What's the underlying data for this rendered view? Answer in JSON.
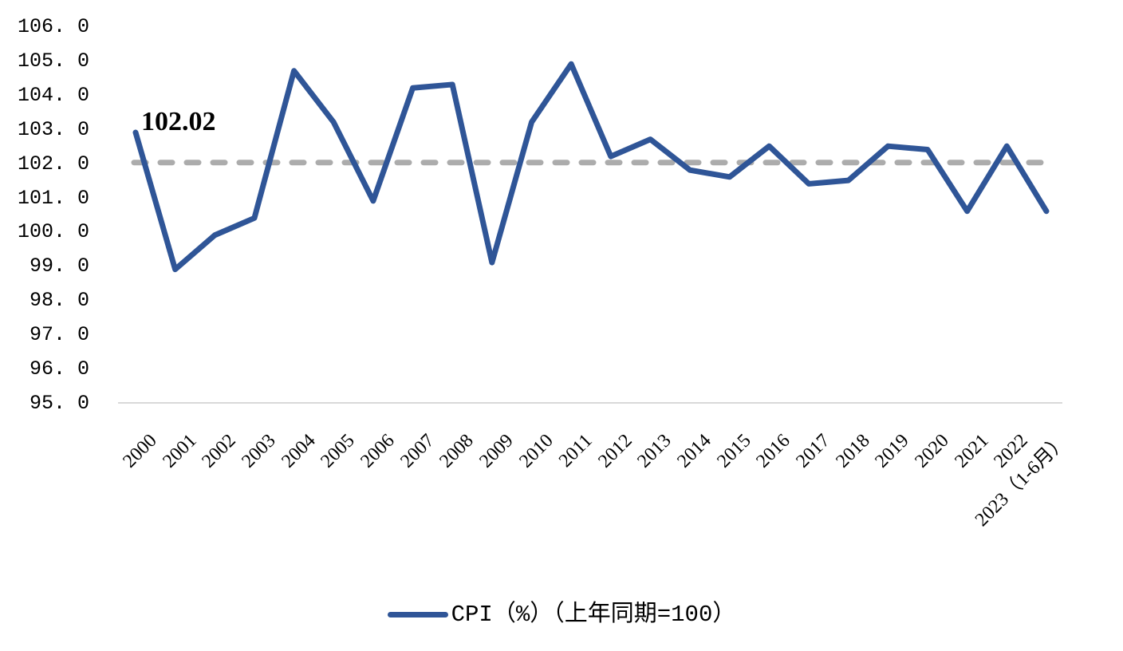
{
  "chart_data": {
    "type": "line",
    "title": "",
    "xlabel": "",
    "ylabel": "",
    "categories": [
      "2000",
      "2001",
      "2002",
      "2003",
      "2004",
      "2005",
      "2006",
      "2007",
      "2008",
      "2009",
      "2010",
      "2011",
      "2012",
      "2013",
      "2014",
      "2015",
      "2016",
      "2017",
      "2018",
      "2019",
      "2020",
      "2021",
      "2022",
      "2023（1-6月）"
    ],
    "series": [
      {
        "name": "CPI（%）（上年同期=100）",
        "values": [
          102.9,
          98.9,
          99.9,
          100.4,
          104.7,
          103.2,
          100.9,
          104.2,
          104.3,
          99.1,
          103.2,
          104.9,
          102.2,
          102.7,
          101.8,
          101.6,
          102.5,
          101.4,
          101.5,
          102.5,
          102.4,
          100.6,
          102.5,
          100.6
        ]
      }
    ],
    "average_line": {
      "value": 102.02,
      "label": "102.02"
    },
    "ylim": [
      95.0,
      106.0
    ],
    "y_tick_step": 1.0,
    "y_tick_labels": [
      "106. 0",
      "105. 0",
      "104. 0",
      "103. 0",
      "102. 0",
      "101. 0",
      "100. 0",
      "99. 0",
      "98. 0",
      "97. 0",
      "96. 0",
      "95. 0"
    ],
    "grid": "off",
    "legend_position": "bottom"
  },
  "colors": {
    "line": "#2F5597",
    "average_dash": "#ACACAC",
    "axis_line": "#D9D9D9",
    "text": "#000000"
  }
}
